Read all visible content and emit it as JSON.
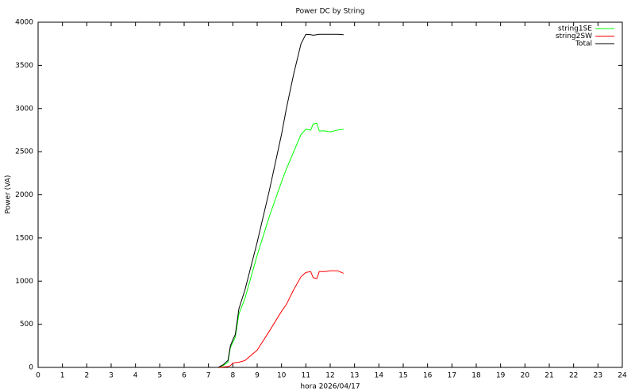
{
  "chart_data": {
    "type": "line",
    "title": "Power DC by String",
    "x_label": "hora 2026/04/17",
    "y_label": "Power (VA)",
    "x": [
      7.4,
      7.6,
      7.8,
      7.9,
      8.0,
      8.1,
      8.25,
      8.5,
      9,
      9.5,
      10,
      10.2,
      10.5,
      10.8,
      11,
      11.2,
      11.3,
      11.45,
      11.55,
      11.8,
      12,
      12.3,
      12.55
    ],
    "series": [
      {
        "name": "string1SE",
        "color": "#00ff00",
        "values": [
          0,
          20,
          60,
          230,
          290,
          350,
          620,
          800,
          1300,
          1750,
          2150,
          2300,
          2500,
          2700,
          2760,
          2750,
          2820,
          2830,
          2740,
          2740,
          2730,
          2750,
          2760
        ]
      },
      {
        "name": "string2SW",
        "color": "#ff0000",
        "values": [
          0,
          5,
          10,
          20,
          50,
          55,
          60,
          80,
          200,
          420,
          650,
          730,
          900,
          1050,
          1100,
          1110,
          1040,
          1030,
          1110,
          1110,
          1120,
          1120,
          1090
        ]
      },
      {
        "name": "Total",
        "color": "#000000",
        "values": [
          0,
          30,
          80,
          250,
          320,
          380,
          680,
          900,
          1450,
          2050,
          2700,
          3000,
          3400,
          3750,
          3860,
          3855,
          3850,
          3855,
          3860,
          3860,
          3860,
          3860,
          3855
        ]
      }
    ],
    "xlim": [
      0,
      24
    ],
    "xticks": [
      0,
      1,
      2,
      3,
      4,
      5,
      6,
      7,
      8,
      9,
      10,
      11,
      12,
      13,
      14,
      15,
      16,
      17,
      18,
      19,
      20,
      21,
      22,
      23,
      24
    ],
    "ylim": [
      0,
      4000
    ],
    "yticks": [
      0,
      500,
      1000,
      1500,
      2000,
      2500,
      3000,
      3500,
      4000
    ],
    "grid": false,
    "legend": "top-right"
  }
}
